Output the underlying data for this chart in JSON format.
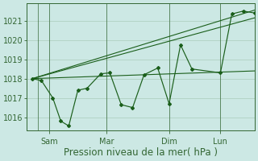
{
  "background_color": "#cce8e4",
  "grid_color": "#aaccbb",
  "line_color": "#1a5e1a",
  "text_color": "#336633",
  "yticks": [
    1016,
    1017,
    1018,
    1019,
    1020,
    1021
  ],
  "ylim": [
    1015.3,
    1021.9
  ],
  "xlim": [
    -0.5,
    19.5
  ],
  "xlabel": "Pression niveau de la mer( hPa )",
  "xlabel_fontsize": 8.5,
  "tick_fontsize": 7,
  "xtick_labels": [
    "Sam",
    "Mar",
    "Dim",
    "Lun"
  ],
  "xtick_positions": [
    1.5,
    6.5,
    12.0,
    16.5
  ],
  "vline_major": [
    0.5,
    1.5,
    6.5,
    12.0,
    16.5
  ],
  "series_x": [
    0.0,
    0.8,
    1.8,
    2.5,
    3.2,
    4.0,
    4.8,
    6.0,
    6.8,
    7.8,
    8.8,
    9.8,
    11.0,
    12.0,
    13.0,
    14.0,
    16.5,
    17.5,
    18.5,
    19.5
  ],
  "series_y": [
    1018.0,
    1017.9,
    1017.0,
    1015.8,
    1015.55,
    1017.4,
    1017.5,
    1018.25,
    1018.3,
    1016.65,
    1016.5,
    1018.2,
    1018.55,
    1016.7,
    1019.75,
    1018.5,
    1018.3,
    1021.35,
    1021.5,
    1021.4
  ],
  "trend_lines": [
    {
      "x": [
        0.0,
        19.5
      ],
      "y": [
        1018.0,
        1021.15
      ]
    },
    {
      "x": [
        0.0,
        19.5
      ],
      "y": [
        1018.0,
        1018.4
      ]
    },
    {
      "x": [
        0.0,
        19.5
      ],
      "y": [
        1018.0,
        1021.55
      ]
    }
  ]
}
